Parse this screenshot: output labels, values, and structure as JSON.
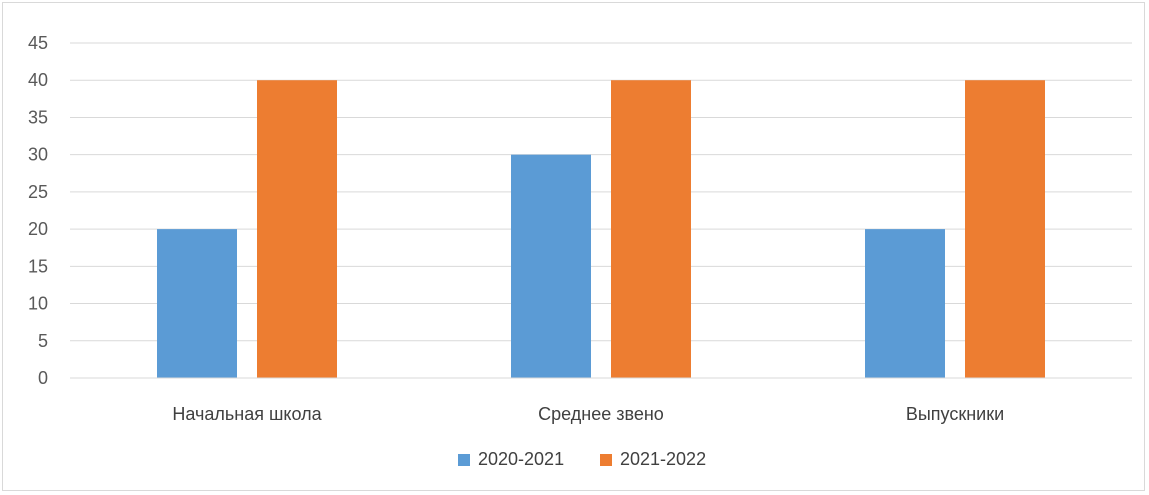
{
  "chart_data": {
    "type": "bar",
    "title": "",
    "xlabel": "",
    "ylabel": "",
    "categories": [
      "Начальная школа",
      "Среднее звено",
      "Выпускники"
    ],
    "series": [
      {
        "name": "2020-2021",
        "values": [
          20,
          30,
          20
        ],
        "color": "#5b9bd5"
      },
      {
        "name": "2021-2022",
        "values": [
          40,
          40,
          40
        ],
        "color": "#ed7d31"
      }
    ],
    "ylim": [
      0,
      45
    ],
    "yticks": [
      0,
      5,
      10,
      15,
      20,
      25,
      30,
      35,
      40,
      45
    ],
    "grid": true,
    "legend_position": "bottom"
  }
}
